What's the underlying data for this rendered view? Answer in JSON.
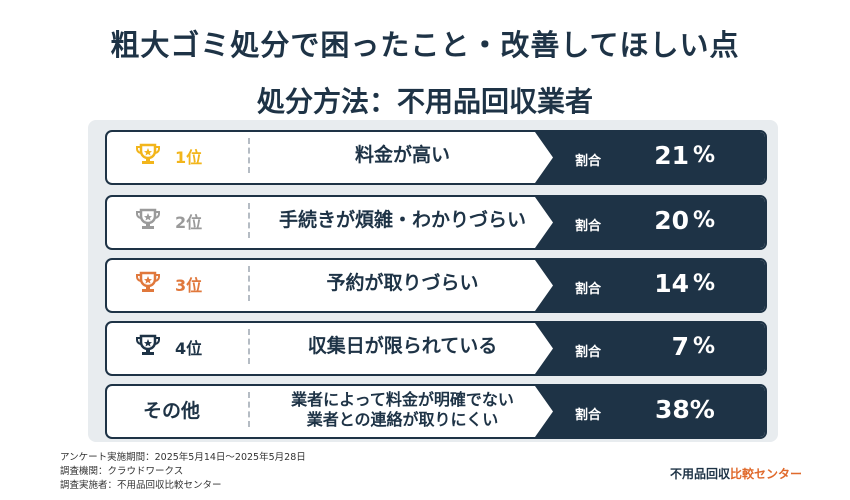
{
  "title": "粗大ゴミ処分で困ったこと・改善してほしい点",
  "subtitle": "処分方法：不用品回収業者",
  "chart_data": {
    "type": "table",
    "rows": [
      {
        "rank": "1位",
        "reason": "料金が高い",
        "ratio_label": "割合",
        "value": 21,
        "unit": "%",
        "medal_color": "#f2b51b",
        "rank_color": "#f2b51b"
      },
      {
        "rank": "2位",
        "reason": "手続きが煩雑・わかりづらい",
        "ratio_label": "割合",
        "value": 20,
        "unit": "%",
        "medal_color": "#9a9a9a",
        "rank_color": "#9a9a9a"
      },
      {
        "rank": "3位",
        "reason": "予約が取りづらい",
        "ratio_label": "割合",
        "value": 14,
        "unit": "%",
        "medal_color": "#e0783c",
        "rank_color": "#e0783c"
      },
      {
        "rank": "4位",
        "reason": "収集日が限られている",
        "ratio_label": "割合",
        "value": 7,
        "unit": "%",
        "medal_color": "#1e3346",
        "rank_color": "#1e3346"
      }
    ],
    "other": {
      "label": "その他",
      "reason_line1": "業者によって料金が明確でない",
      "reason_line2": "業者との連絡が取りにくい",
      "ratio_label": "割合",
      "value_text": "38%"
    }
  },
  "footer": {
    "line1": "アンケート実施期間：2025年5月14日〜2025年5月28日",
    "line2": "調査機関：クラウドワークス",
    "line3": "調査実施者：不用品回収比較センター"
  },
  "brand": {
    "part1": "不用品回収",
    "part2": "比較センター"
  }
}
